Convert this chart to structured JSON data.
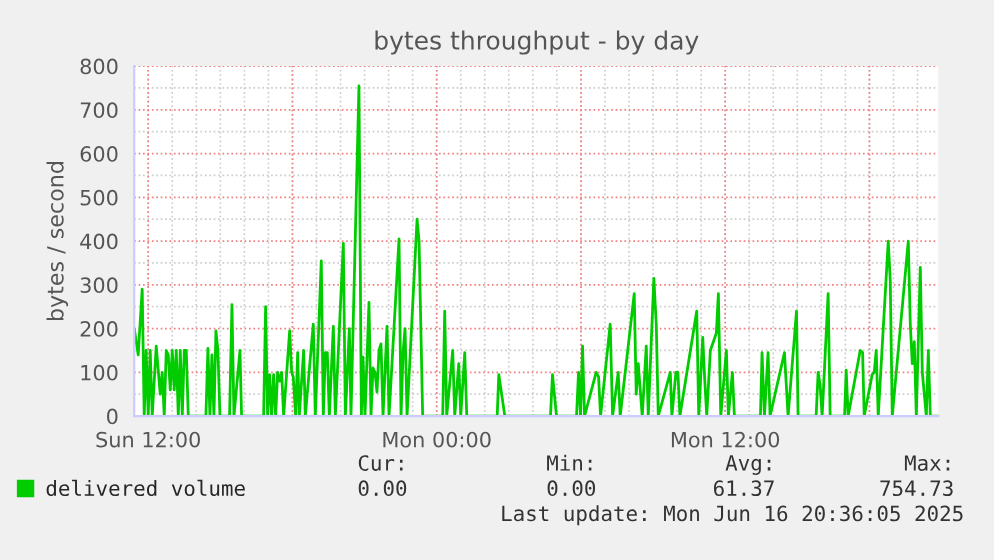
{
  "chart_data": {
    "type": "line",
    "title": "bytes throughput - by day",
    "ylabel": "bytes / second",
    "x": [
      "2025-06-15T11:25",
      "2025-06-15T11:35",
      "2025-06-15T11:45",
      "2025-06-15T11:50",
      "2025-06-15T11:55",
      "2025-06-15T12:00",
      "2025-06-15T12:05",
      "2025-06-15T12:10",
      "2025-06-15T12:20",
      "2025-06-15T12:30",
      "2025-06-15T12:35",
      "2025-06-15T12:40",
      "2025-06-15T12:45",
      "2025-06-15T12:50",
      "2025-06-15T12:55",
      "2025-06-15T13:00",
      "2025-06-15T13:05",
      "2025-06-15T13:10",
      "2025-06-15T13:15",
      "2025-06-15T13:20",
      "2025-06-15T13:25",
      "2025-06-15T13:30",
      "2025-06-15T13:35",
      "2025-06-15T13:40",
      "2025-06-15T14:24",
      "2025-06-15T14:29",
      "2025-06-15T14:34",
      "2025-06-15T14:39",
      "2025-06-15T14:44",
      "2025-06-15T14:49",
      "2025-06-15T14:54",
      "2025-06-15T14:59",
      "2025-06-15T15:23",
      "2025-06-15T15:29",
      "2025-06-15T15:34",
      "2025-06-15T15:49",
      "2025-06-15T15:53",
      "2025-06-15T16:48",
      "2025-06-15T16:53",
      "2025-06-15T16:58",
      "2025-06-15T17:03",
      "2025-06-15T17:08",
      "2025-06-15T17:13",
      "2025-06-15T17:18",
      "2025-06-15T17:23",
      "2025-06-15T17:28",
      "2025-06-15T17:33",
      "2025-06-15T17:38",
      "2025-06-15T17:53",
      "2025-06-15T17:58",
      "2025-06-15T18:02",
      "2025-06-15T18:08",
      "2025-06-15T18:13",
      "2025-06-15T18:17",
      "2025-06-15T18:28",
      "2025-06-15T18:32",
      "2025-06-15T18:52",
      "2025-06-15T18:57",
      "2025-06-15T19:12",
      "2025-06-15T19:17",
      "2025-06-15T19:22",
      "2025-06-15T19:27",
      "2025-06-15T19:32",
      "2025-06-15T19:42",
      "2025-06-15T19:47",
      "2025-06-15T20:07",
      "2025-06-15T20:12",
      "2025-06-15T20:22",
      "2025-06-15T20:26",
      "2025-06-15T20:46",
      "2025-06-15T20:52",
      "2025-06-15T20:56",
      "2025-06-15T21:01",
      "2025-06-15T21:11",
      "2025-06-15T21:16",
      "2025-06-15T21:21",
      "2025-06-15T21:26",
      "2025-06-15T21:31",
      "2025-06-15T21:36",
      "2025-06-15T21:41",
      "2025-06-15T21:46",
      "2025-06-15T21:56",
      "2025-06-15T22:01",
      "2025-06-15T22:26",
      "2025-06-15T22:31",
      "2025-06-15T22:36",
      "2025-06-15T22:41",
      "2025-06-15T22:46",
      "2025-06-15T23:11",
      "2025-06-15T23:16",
      "2025-06-15T23:25",
      "2025-06-16T00:15",
      "2025-06-16T00:20",
      "2025-06-16T00:25",
      "2025-06-16T00:40",
      "2025-06-16T00:45",
      "2025-06-16T00:55",
      "2025-06-16T01:00",
      "2025-06-16T01:10",
      "2025-06-16T01:15",
      "2025-06-16T02:31",
      "2025-06-16T02:35",
      "2025-06-16T02:50",
      "2025-06-16T04:44",
      "2025-06-16T04:49",
      "2025-06-16T04:59",
      "2025-06-16T05:49",
      "2025-06-16T05:54",
      "2025-06-16T05:59",
      "2025-06-16T06:04",
      "2025-06-16T06:09",
      "2025-06-16T06:38",
      "2025-06-16T06:44",
      "2025-06-16T06:49",
      "2025-06-16T07:13",
      "2025-06-16T07:19",
      "2025-06-16T07:33",
      "2025-06-16T07:38",
      "2025-06-16T08:13",
      "2025-06-16T08:18",
      "2025-06-16T08:23",
      "2025-06-16T08:33",
      "2025-06-16T08:43",
      "2025-06-16T08:48",
      "2025-06-16T09:02",
      "2025-06-16T09:08",
      "2025-06-16T09:13",
      "2025-06-16T09:43",
      "2025-06-16T09:47",
      "2025-06-16T09:57",
      "2025-06-16T10:02",
      "2025-06-16T10:07",
      "2025-06-16T10:49",
      "2025-06-16T10:54",
      "2025-06-16T11:04",
      "2025-06-16T11:08",
      "2025-06-16T11:14",
      "2025-06-16T11:23",
      "2025-06-16T11:38",
      "2025-06-16T11:43",
      "2025-06-16T11:49",
      "2025-06-16T12:03",
      "2025-06-16T12:08",
      "2025-06-16T12:18",
      "2025-06-16T12:23",
      "2025-06-16T13:28",
      "2025-06-16T13:32",
      "2025-06-16T13:38",
      "2025-06-16T13:47",
      "2025-06-16T13:52",
      "2025-06-16T14:28",
      "2025-06-16T14:32",
      "2025-06-16T14:37",
      "2025-06-16T14:58",
      "2025-06-16T15:02",
      "2025-06-16T15:47",
      "2025-06-16T15:52",
      "2025-06-16T15:57",
      "2025-06-16T16:02",
      "2025-06-16T16:17",
      "2025-06-16T16:22",
      "2025-06-16T16:58",
      "2025-06-16T17:02",
      "2025-06-16T17:07",
      "2025-06-16T17:37",
      "2025-06-16T17:43",
      "2025-06-16T17:47",
      "2025-06-16T18:07",
      "2025-06-16T18:12",
      "2025-06-16T18:17",
      "2025-06-16T18:22",
      "2025-06-16T18:47",
      "2025-06-16T18:52",
      "2025-06-16T18:57",
      "2025-06-16T19:37",
      "2025-06-16T19:42",
      "2025-06-16T19:47",
      "2025-06-16T19:52",
      "2025-06-16T19:57",
      "2025-06-16T20:07",
      "2025-06-16T20:12",
      "2025-06-16T20:22",
      "2025-06-16T20:27",
      "2025-06-16T20:32",
      "2025-06-16T20:52"
    ],
    "series": [
      {
        "name": "delivered volume",
        "color": "#00cc00",
        "values": [
          200,
          140,
          290,
          0,
          150,
          0,
          150,
          0,
          160,
          50,
          100,
          0,
          150,
          140,
          60,
          150,
          60,
          150,
          0,
          150,
          0,
          150,
          150,
          0,
          0,
          155,
          0,
          140,
          0,
          195,
          150,
          0,
          0,
          255,
          0,
          150,
          0,
          0,
          250,
          0,
          95,
          0,
          95,
          0,
          100,
          80,
          100,
          0,
          195,
          100,
          90,
          0,
          145,
          0,
          150,
          0,
          210,
          0,
          355,
          0,
          145,
          145,
          0,
          205,
          0,
          395,
          0,
          200,
          0,
          755,
          0,
          135,
          0,
          260,
          0,
          110,
          100,
          55,
          150,
          165,
          0,
          205,
          0,
          405,
          0,
          145,
          200,
          0,
          450,
          400,
          0,
          0,
          240,
          0,
          150,
          0,
          120,
          0,
          145,
          0,
          0,
          95,
          0,
          0,
          95,
          0,
          0,
          100,
          0,
          160,
          0,
          100,
          90,
          0,
          210,
          0,
          100,
          0,
          280,
          50,
          120,
          0,
          160,
          0,
          315,
          210,
          0,
          100,
          0,
          100,
          100,
          0,
          240,
          0,
          180,
          100,
          0,
          150,
          190,
          280,
          0,
          150,
          0,
          100,
          0,
          0,
          145,
          0,
          145,
          0,
          145,
          80,
          0,
          240,
          0,
          0,
          100,
          70,
          0,
          280,
          0,
          0,
          105,
          0,
          150,
          145,
          0,
          95,
          100,
          150,
          0,
          400,
          310,
          0,
          400,
          210,
          120,
          170,
          0,
          340,
          100,
          0,
          150,
          0,
          0
        ]
      }
    ],
    "xlim": [
      "2025-06-15T11:25",
      "2025-06-16T20:52"
    ],
    "xticks": [
      {
        "value": "2025-06-15T12:00",
        "label": "Sun 12:00"
      },
      {
        "value": "2025-06-15T18:00",
        "label": null
      },
      {
        "value": "2025-06-16T00:00",
        "label": "Mon 00:00"
      },
      {
        "value": "2025-06-16T06:00",
        "label": null
      },
      {
        "value": "2025-06-16T12:00",
        "label": "Mon 12:00"
      },
      {
        "value": "2025-06-16T18:00",
        "label": null
      }
    ],
    "ylim": [
      0,
      800
    ],
    "yticks": [
      0,
      100,
      200,
      300,
      400,
      500,
      600,
      700,
      800
    ],
    "grid": true,
    "legend": "bottom",
    "line_style": "solid",
    "annotations": [
      "Cur:",
      "Min:",
      "Avg:",
      "Max:",
      "0.00",
      "0.00",
      "61.37",
      "754.73",
      "Last update: Mon Jun 16 20:36:05 2025"
    ]
  }
}
